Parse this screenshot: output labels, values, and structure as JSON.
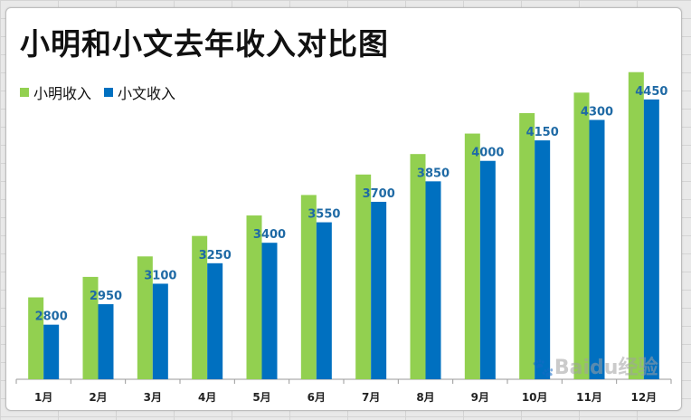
{
  "chart_data": {
    "type": "bar",
    "title": "小明和小文去年收入对比图",
    "categories": [
      "1月",
      "2月",
      "3月",
      "4月",
      "5月",
      "6月",
      "7月",
      "8月",
      "9月",
      "10月",
      "11月",
      "12月"
    ],
    "series": [
      {
        "name": "小明收入",
        "color": "#92d050",
        "values": [
          2800,
          2950,
          3100,
          3250,
          3400,
          3550,
          3700,
          3850,
          4000,
          4150,
          4300,
          4450
        ]
      },
      {
        "name": "小文收入",
        "color": "#0070c0",
        "values": [
          2600,
          2750,
          2900,
          3050,
          3200,
          3350,
          3500,
          3650,
          3800,
          3950,
          4100,
          4250
        ]
      }
    ],
    "data_labels": [
      "2800",
      "2950",
      "3100",
      "3250",
      "3400",
      "3550",
      "3700",
      "3850",
      "4000",
      "4150",
      "4300",
      "4450"
    ],
    "data_label_color": "#1f6aa5",
    "ylim": [
      2200,
      4700
    ],
    "grid": false,
    "legend": "top-left"
  },
  "watermark": {
    "brand": "Baidu",
    "suffix": "经验"
  }
}
